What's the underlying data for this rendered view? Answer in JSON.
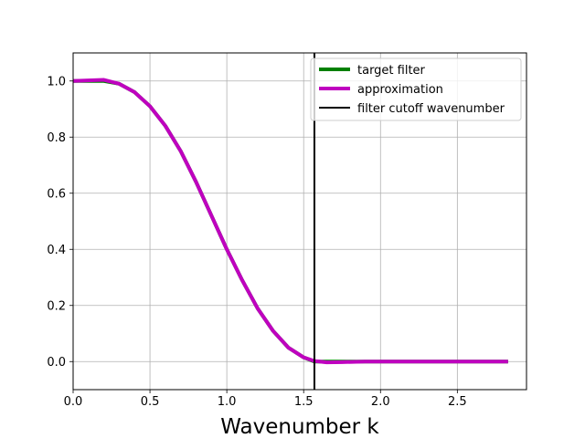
{
  "chart_data": {
    "type": "line",
    "title": "",
    "xlabel": "Wavenumber k",
    "ylabel": "",
    "xlim": [
      0,
      2.95
    ],
    "ylim": [
      -0.1,
      1.1
    ],
    "grid": true,
    "legend_position": "top-right",
    "x_ticks": [
      0,
      0.5,
      1.0,
      1.5,
      2.0,
      2.5
    ],
    "x_tick_labels": [
      "0.0",
      "0.5",
      "1.0",
      "1.5",
      "2.0",
      "2.5"
    ],
    "y_ticks": [
      0,
      0.2,
      0.4,
      0.6,
      0.8,
      1.0
    ],
    "y_tick_labels": [
      "0.0",
      "0.2",
      "0.4",
      "0.6",
      "0.8",
      "1.0"
    ],
    "series": [
      {
        "name": "target filter",
        "color": "#008000",
        "x": [
          0,
          0.1,
          0.2,
          0.3,
          0.4,
          0.5,
          0.6,
          0.7,
          0.8,
          0.9,
          1.0,
          1.1,
          1.2,
          1.3,
          1.4,
          1.5,
          1.57,
          1.7,
          1.9,
          2.1,
          2.3,
          2.5,
          2.7,
          2.83
        ],
        "values": [
          1.0,
          1.0,
          1.0,
          0.99,
          0.96,
          0.91,
          0.84,
          0.75,
          0.64,
          0.52,
          0.4,
          0.29,
          0.19,
          0.11,
          0.05,
          0.015,
          0.0,
          0.0,
          0.0,
          0.0,
          0.0,
          0.0,
          0.0,
          0.0
        ]
      },
      {
        "name": "approximation",
        "color": "#bf00bf",
        "x": [
          0,
          0.1,
          0.2,
          0.3,
          0.4,
          0.5,
          0.6,
          0.7,
          0.8,
          0.9,
          1.0,
          1.1,
          1.2,
          1.3,
          1.4,
          1.5,
          1.57,
          1.65,
          1.75,
          1.9,
          2.1,
          2.3,
          2.5,
          2.7,
          2.83
        ],
        "values": [
          1.0,
          1.002,
          1.004,
          0.99,
          0.96,
          0.91,
          0.84,
          0.75,
          0.64,
          0.52,
          0.4,
          0.29,
          0.19,
          0.11,
          0.05,
          0.015,
          0.002,
          -0.003,
          -0.002,
          0.0,
          0.0,
          0.0,
          0.0,
          0.0,
          0.0
        ]
      }
    ],
    "vlines": [
      {
        "name": "filter cutoff wavenumber",
        "x": 1.57,
        "color": "#000000"
      }
    ],
    "legend": [
      "target filter",
      "approximation",
      "filter cutoff wavenumber"
    ]
  }
}
